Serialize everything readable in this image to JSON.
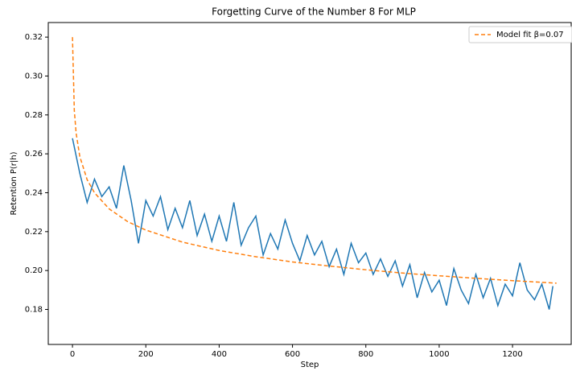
{
  "chart_data": {
    "type": "line",
    "title": "Forgetting Curve of the Number 8 For MLP",
    "xlabel": "Step",
    "ylabel": "Retention  P(r|h)",
    "xlim": [
      -66,
      1360
    ],
    "ylim": [
      0.162,
      0.3275
    ],
    "xticks": [
      0,
      200,
      400,
      600,
      800,
      1000,
      1200
    ],
    "yticks": [
      0.18,
      {
        "value": 0.2,
        "label": "0.20"
      },
      0.22,
      0.24,
      0.26,
      0.28,
      {
        "value": 0.3,
        "label": "0.30"
      },
      0.32
    ],
    "legend": "upper right",
    "series": [
      {
        "color": "#1f77b4",
        "style": "solid",
        "x": [
          0,
          20,
          40,
          60,
          80,
          100,
          120,
          140,
          160,
          180,
          200,
          220,
          240,
          260,
          280,
          300,
          320,
          340,
          360,
          380,
          400,
          420,
          440,
          460,
          480,
          500,
          520,
          540,
          560,
          580,
          600,
          620,
          640,
          660,
          680,
          700,
          720,
          740,
          760,
          780,
          800,
          820,
          840,
          860,
          880,
          900,
          920,
          940,
          960,
          980,
          1000,
          1020,
          1040,
          1060,
          1080,
          1100,
          1120,
          1140,
          1160,
          1180,
          1200,
          1220,
          1240,
          1260,
          1280,
          1300,
          1310
        ],
        "values": [
          0.268,
          0.25,
          0.235,
          0.247,
          0.238,
          0.243,
          0.232,
          0.254,
          0.236,
          0.214,
          0.236,
          0.228,
          0.238,
          0.221,
          0.232,
          0.222,
          0.236,
          0.218,
          0.229,
          0.215,
          0.228,
          0.215,
          0.235,
          0.213,
          0.222,
          0.228,
          0.208,
          0.219,
          0.211,
          0.226,
          0.214,
          0.205,
          0.218,
          0.208,
          0.215,
          0.202,
          0.211,
          0.198,
          0.214,
          0.204,
          0.209,
          0.198,
          0.206,
          0.197,
          0.205,
          0.192,
          0.203,
          0.186,
          0.199,
          0.189,
          0.195,
          0.182,
          0.201,
          0.19,
          0.183,
          0.198,
          0.186,
          0.196,
          0.182,
          0.193,
          0.187,
          0.204,
          0.19,
          0.185,
          0.193,
          0.18,
          0.192
        ]
      },
      {
        "name": "Model fit  β=0.07",
        "color": "#ff7f0e",
        "style": "dashed",
        "x": [
          0,
          5,
          10,
          20,
          40,
          60,
          100,
          150,
          200,
          300,
          400,
          500,
          600,
          700,
          800,
          900,
          1000,
          1100,
          1200,
          1320
        ],
        "values": [
          0.32,
          0.2823,
          0.2706,
          0.2586,
          0.2467,
          0.24,
          0.2317,
          0.2252,
          0.2208,
          0.2146,
          0.2103,
          0.2071,
          0.2044,
          0.2023,
          0.2004,
          0.1987,
          0.1973,
          0.196,
          0.1948,
          0.1935
        ]
      }
    ]
  }
}
